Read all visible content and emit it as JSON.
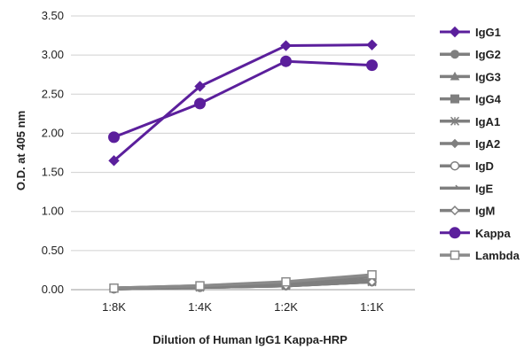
{
  "chart_data": {
    "type": "line",
    "title": "",
    "xlabel": "Dilution of Human IgG1 Kappa-HRP",
    "ylabel": "O.D. at 405 nm",
    "categories": [
      "1:8K",
      "1:4K",
      "1:2K",
      "1:1K"
    ],
    "ylim": [
      0,
      3.5
    ],
    "yticks": [
      "0.00",
      "0.50",
      "1.00",
      "1.50",
      "2.00",
      "2.50",
      "3.00",
      "3.50"
    ],
    "grid": "horizontal",
    "legend_position": "right",
    "series": [
      {
        "name": "IgG1",
        "marker": "diamond",
        "color": "#5b1f9c",
        "values": [
          1.65,
          2.6,
          3.12,
          3.13
        ]
      },
      {
        "name": "IgG2",
        "marker": "circle",
        "color": "#7f7f7f",
        "values": [
          0.02,
          0.04,
          0.07,
          0.12
        ]
      },
      {
        "name": "IgG3",
        "marker": "triangle",
        "color": "#7f7f7f",
        "values": [
          0.02,
          0.04,
          0.06,
          0.11
        ]
      },
      {
        "name": "IgG4",
        "marker": "square",
        "color": "#7f7f7f",
        "values": [
          0.02,
          0.05,
          0.09,
          0.17
        ]
      },
      {
        "name": "IgA1",
        "marker": "star",
        "color": "#7f7f7f",
        "values": [
          0.02,
          0.03,
          0.05,
          0.1
        ]
      },
      {
        "name": "IgA2",
        "marker": "diamond",
        "color": "#7f7f7f",
        "values": [
          0.02,
          0.04,
          0.07,
          0.13
        ]
      },
      {
        "name": "IgD",
        "marker": "open-circle",
        "color": "#7f7f7f",
        "values": [
          0.01,
          0.03,
          0.05,
          0.1
        ]
      },
      {
        "name": "IgE",
        "marker": "arrow",
        "color": "#7f7f7f",
        "values": [
          0.01,
          0.03,
          0.05,
          0.11
        ]
      },
      {
        "name": "IgM",
        "marker": "open-diamond",
        "color": "#7f7f7f",
        "values": [
          0.01,
          0.03,
          0.05,
          0.1
        ]
      },
      {
        "name": "Kappa",
        "marker": "circle",
        "color": "#5b1f9c",
        "values": [
          1.95,
          2.38,
          2.92,
          2.87
        ]
      },
      {
        "name": "Lambda",
        "marker": "open-square",
        "color": "#8a8a8a",
        "values": [
          0.02,
          0.05,
          0.1,
          0.19
        ]
      }
    ]
  }
}
